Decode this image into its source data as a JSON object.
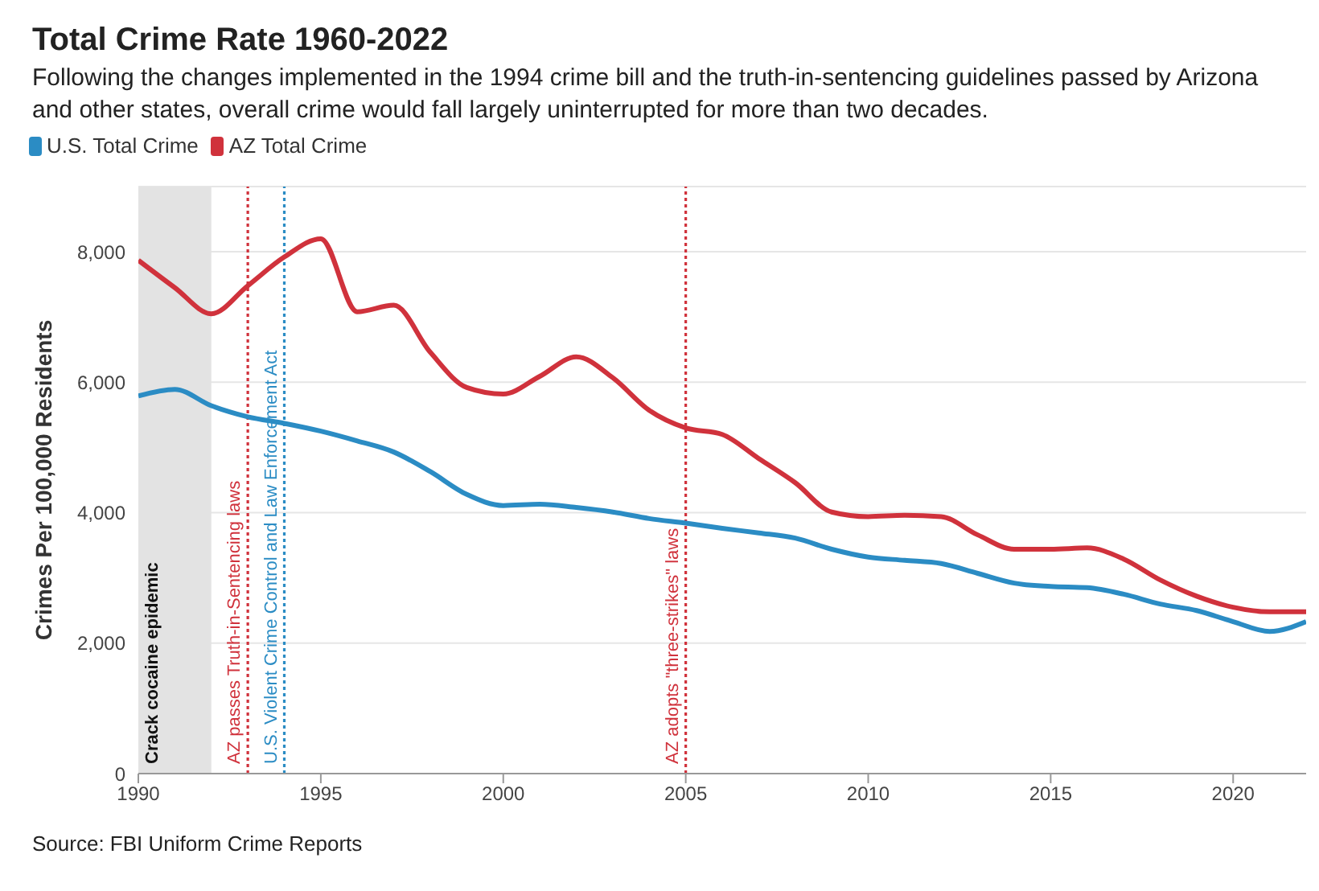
{
  "chart_data": {
    "type": "line",
    "title": "Total Crime Rate 1960-2022",
    "subtitle": "Following the changes implemented in the 1994 crime bill and the truth-in-sentencing guidelines passed by Arizona and other states, overall crime would fall largely uninterrupted for more than two decades.",
    "ylabel": "Crimes Per 100,000 Residents",
    "annotations": [
      "Source: FBI Uniform Crime Reports"
    ],
    "x": [
      1990,
      1991,
      1992,
      1993,
      1994,
      1995,
      1996,
      1997,
      1998,
      1999,
      2000,
      2001,
      2002,
      2003,
      2004,
      2005,
      2006,
      2007,
      2008,
      2009,
      2010,
      2011,
      2012,
      2013,
      2014,
      2015,
      2016,
      2017,
      2018,
      2019,
      2020,
      2021,
      2022
    ],
    "series": [
      {
        "name": "U.S. Total Crime",
        "color": "#2b8cc4",
        "values": [
          5790,
          5890,
          5640,
          5470,
          5370,
          5250,
          5100,
          4930,
          4630,
          4280,
          4110,
          4130,
          4080,
          4010,
          3910,
          3840,
          3760,
          3690,
          3610,
          3440,
          3320,
          3270,
          3220,
          3070,
          2920,
          2870,
          2850,
          2750,
          2600,
          2500,
          2330,
          2180,
          2330
        ]
      },
      {
        "name": "AZ Total Crime",
        "color": "#d0323c",
        "values": [
          7870,
          7450,
          7050,
          7480,
          7920,
          8200,
          7080,
          7180,
          6460,
          5920,
          5820,
          6090,
          6390,
          6070,
          5570,
          5300,
          5200,
          4830,
          4460,
          4010,
          3940,
          3960,
          3940,
          3660,
          3440,
          3440,
          3460,
          3290,
          2970,
          2720,
          2550,
          2480,
          2480
        ]
      }
    ],
    "xlim": [
      1990,
      2022
    ],
    "xticks": [
      1990,
      1995,
      2000,
      2005,
      2010,
      2015,
      2020
    ],
    "ylim": [
      0,
      9000
    ],
    "yticks": [
      {
        "value": 0,
        "label": "0"
      },
      {
        "value": 2000,
        "label": "2,000"
      },
      {
        "value": 4000,
        "label": "4,000"
      },
      {
        "value": 6000,
        "label": "6,000"
      },
      {
        "value": 8000,
        "label": "8,000"
      }
    ],
    "ref_lines": [
      {
        "axis": "x",
        "value": 1993,
        "label": "AZ passes Truth-in-Sentencing laws",
        "color": "#d0323c",
        "line_style": "dotted"
      },
      {
        "axis": "x",
        "value": 1994,
        "label": "U.S. Violent Crime Control and Law Enforcement Act",
        "color": "#2b8cc4",
        "line_style": "dotted"
      },
      {
        "axis": "x",
        "value": 2005,
        "label": "AZ adopts \"three-strikes\" laws",
        "color": "#d0323c",
        "line_style": "dotted"
      }
    ],
    "bands": [
      {
        "axis": "x",
        "from": 1990,
        "to": 1992,
        "label": "Crack cocaine epidemic",
        "color": "#e3e3e3"
      }
    ],
    "grid": "y",
    "legend": "top left",
    "marker": "none",
    "line_style": "solid"
  }
}
